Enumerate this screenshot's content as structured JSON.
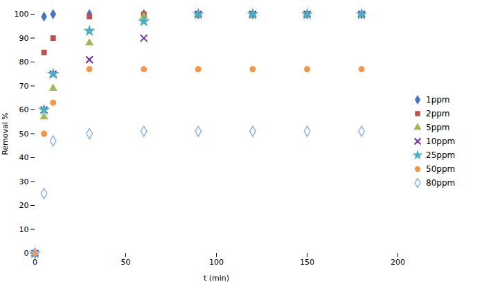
{
  "chart_data": {
    "type": "scatter",
    "xlabel": "t (min)",
    "ylabel": "Removal %",
    "x": [
      0,
      5,
      10,
      30,
      60,
      90,
      120,
      150,
      180
    ],
    "series": [
      {
        "name": "1ppm",
        "color": "#4472C4",
        "marker": "diamond",
        "values": [
          0,
          99,
          100,
          100,
          100,
          100,
          100,
          100,
          100
        ]
      },
      {
        "name": "2ppm",
        "color": "#C0504D",
        "marker": "square",
        "values": [
          0,
          84,
          90,
          99,
          100,
          100,
          100,
          100,
          100
        ]
      },
      {
        "name": "5ppm",
        "color": "#9BBB59",
        "marker": "triangle",
        "values": [
          0,
          57,
          69,
          88,
          99,
          100,
          100,
          100,
          100
        ]
      },
      {
        "name": "10ppm",
        "color": "#7030A0",
        "marker": "x",
        "values": [
          0,
          60,
          75,
          81,
          90,
          100,
          100,
          100,
          100
        ]
      },
      {
        "name": "25ppm",
        "color": "#4BACC6",
        "marker": "star",
        "values": [
          0,
          60,
          75,
          93,
          97,
          100,
          100,
          100,
          100
        ]
      },
      {
        "name": "50ppm",
        "color": "#F79646",
        "marker": "circle",
        "values": [
          0,
          50,
          63,
          77,
          77,
          77,
          77,
          77,
          77
        ]
      },
      {
        "name": "80ppm",
        "color": "#8EB4E3",
        "marker": "hollow diamond",
        "values": [
          0,
          25,
          47,
          50,
          51,
          51,
          51,
          51,
          51
        ]
      }
    ],
    "xlim": [
      0,
      200
    ],
    "ylim": [
      0,
      100
    ],
    "xticks": [
      0,
      50,
      100,
      150,
      200
    ],
    "yticks": [
      0,
      10,
      20,
      30,
      40,
      50,
      60,
      70,
      80,
      90,
      100
    ],
    "grid": false,
    "legend": "right"
  }
}
